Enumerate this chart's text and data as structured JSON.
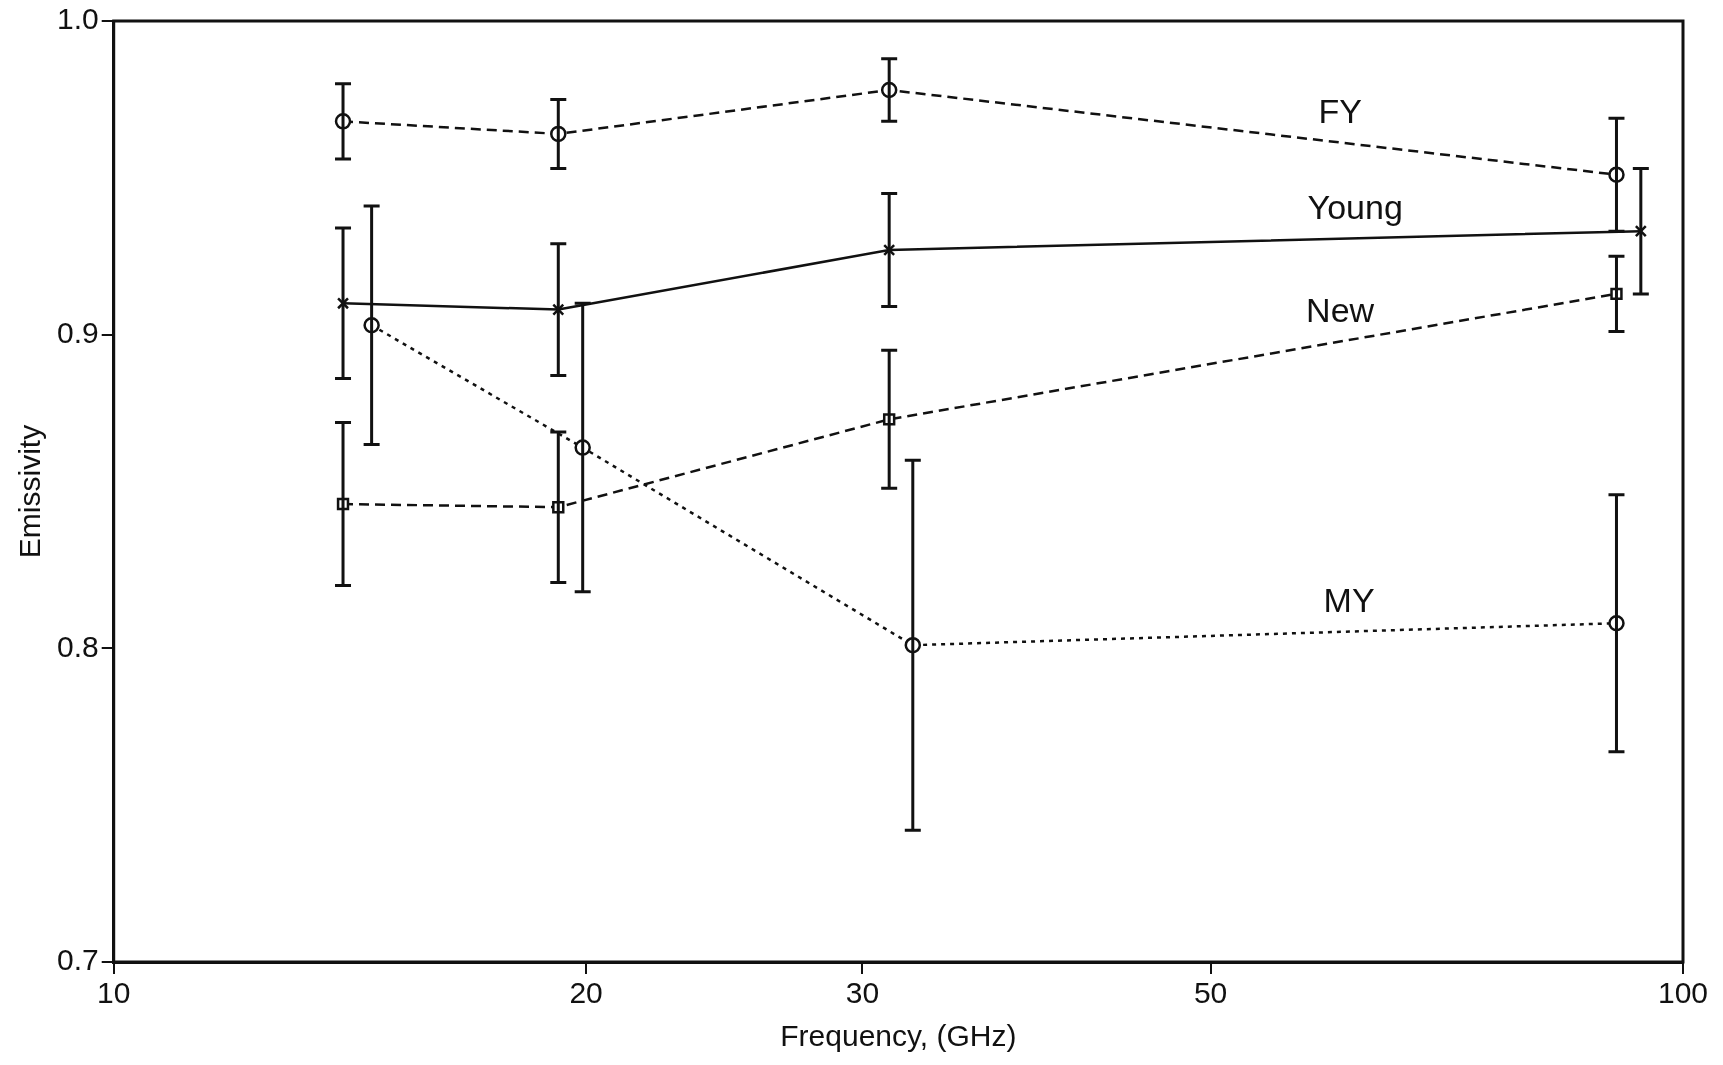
{
  "chart_data": {
    "type": "line",
    "xlabel": "Frequency, (GHz)",
    "ylabel": "Emissivity",
    "log": "x",
    "xlim": [
      10,
      100
    ],
    "xticks": [
      10,
      20,
      30,
      50,
      100
    ],
    "ylim": [
      0.7,
      1.0
    ],
    "yticks": [
      {
        "value": 0.7,
        "label": "0.7"
      },
      {
        "value": 0.8,
        "label": "0.8"
      },
      {
        "value": 0.9,
        "label": "0.9"
      },
      {
        "value": 1.0,
        "label": "1.0"
      }
    ],
    "grid": false,
    "legend": false,
    "series": [
      {
        "name": "FY",
        "color": "#111111",
        "marker": "circle",
        "line_style": "dashed",
        "x": [
          14.0,
          19.2,
          31.2,
          90.7
        ],
        "values": [
          0.968,
          0.964,
          0.978,
          0.951
        ],
        "errors": [
          0.012,
          0.011,
          0.01,
          0.018
        ]
      },
      {
        "name": "Young",
        "color": "#111111",
        "marker": "cross",
        "line_style": "solid",
        "x": [
          14.0,
          19.2,
          31.2,
          94
        ],
        "values": [
          0.91,
          0.908,
          0.927,
          0.933
        ],
        "errors": [
          0.024,
          0.021,
          0.018,
          0.02
        ]
      },
      {
        "name": "New",
        "color": "#111111",
        "marker": "square",
        "line_style": "dashed",
        "x": [
          14.0,
          19.2,
          31.2,
          90.7
        ],
        "values": [
          0.846,
          0.845,
          0.873,
          0.913
        ],
        "errors": [
          0.026,
          0.024,
          0.022,
          0.012
        ]
      },
      {
        "name": "MY",
        "color": "#111111",
        "marker": "circle",
        "line_style": "dotted",
        "x": [
          14.6,
          19.9,
          32.3,
          90.7
        ],
        "values": [
          0.903,
          0.864,
          0.801,
          0.808
        ],
        "errors": [
          0.038,
          0.046,
          0.059,
          0.041
        ]
      }
    ]
  }
}
